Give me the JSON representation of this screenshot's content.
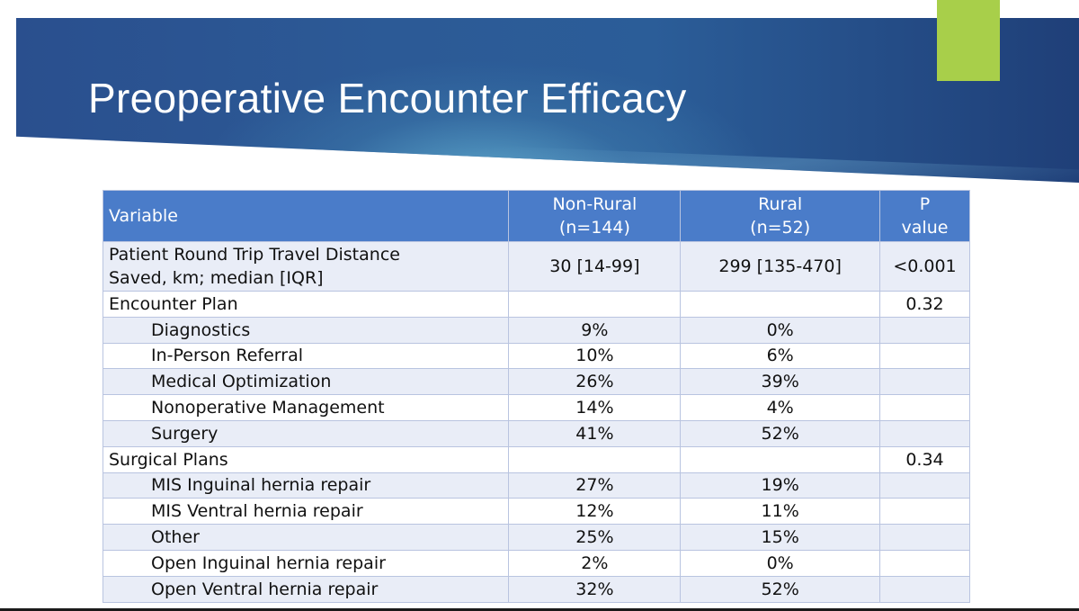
{
  "slide": {
    "title": "Preoperative Encounter Efficacy",
    "colors": {
      "banner": "#2b5d98",
      "accent": "#a8cf4a",
      "header_fill": "#4a7cc9",
      "row_band": "#e9edf7"
    }
  },
  "table": {
    "headers": {
      "variable": "Variable",
      "non_rural_line1": "Non-Rural",
      "non_rural_line2": "(n=144)",
      "rural_line1": "Rural",
      "rural_line2": "(n=52)",
      "p_line1": "P",
      "p_line2": "value"
    },
    "rows": [
      {
        "label_line1": "Patient Round Trip Travel Distance",
        "label_line2": "Saved, km; median [IQR]",
        "non_rural": "30 [14-99]",
        "rural": "299 [135-470]",
        "p": "<0.001"
      },
      {
        "label": "Encounter Plan",
        "non_rural": "",
        "rural": "",
        "p": "0.32"
      },
      {
        "label": "Diagnostics",
        "non_rural": "9%",
        "rural": "0%",
        "p": ""
      },
      {
        "label": "In-Person Referral",
        "non_rural": "10%",
        "rural": "6%",
        "p": ""
      },
      {
        "label": "Medical Optimization",
        "non_rural": "26%",
        "rural": "39%",
        "p": ""
      },
      {
        "label": "Nonoperative Management",
        "non_rural": "14%",
        "rural": "4%",
        "p": ""
      },
      {
        "label": "Surgery",
        "non_rural": "41%",
        "rural": "52%",
        "p": ""
      },
      {
        "label": "Surgical Plans",
        "non_rural": "",
        "rural": "",
        "p": "0.34"
      },
      {
        "label": "MIS Inguinal hernia repair",
        "non_rural": "27%",
        "rural": "19%",
        "p": ""
      },
      {
        "label": "MIS Ventral hernia repair",
        "non_rural": "12%",
        "rural": "11%",
        "p": ""
      },
      {
        "label": "Other",
        "non_rural": "25%",
        "rural": "15%",
        "p": ""
      },
      {
        "label": "Open Inguinal hernia repair",
        "non_rural": "2%",
        "rural": "0%",
        "p": ""
      },
      {
        "label": "Open Ventral hernia repair",
        "non_rural": "32%",
        "rural": "52%",
        "p": ""
      }
    ]
  }
}
